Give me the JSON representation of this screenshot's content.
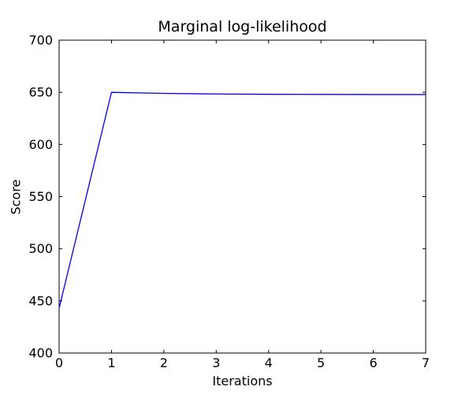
{
  "chart_data": {
    "type": "line",
    "title": "Marginal log-likelihood",
    "xlabel": "Iterations",
    "ylabel": "Score",
    "x": [
      0,
      1,
      2,
      3,
      4,
      5,
      6,
      7
    ],
    "series": [
      {
        "name": "marginal-log-likelihood",
        "color": "#0000f0",
        "values": [
          443,
          650,
          649,
          648.4,
          648.1,
          648,
          647.9,
          647.9
        ]
      }
    ],
    "xlim": [
      0,
      7
    ],
    "ylim": [
      400,
      700
    ],
    "xticks": [
      0,
      1,
      2,
      3,
      4,
      5,
      6,
      7
    ],
    "yticks": [
      400,
      450,
      500,
      550,
      600,
      650,
      700
    ],
    "grid": false,
    "legend_position": "none",
    "axes_color": "#000000",
    "background_color": "#ffffff",
    "tick_direction": "in"
  }
}
